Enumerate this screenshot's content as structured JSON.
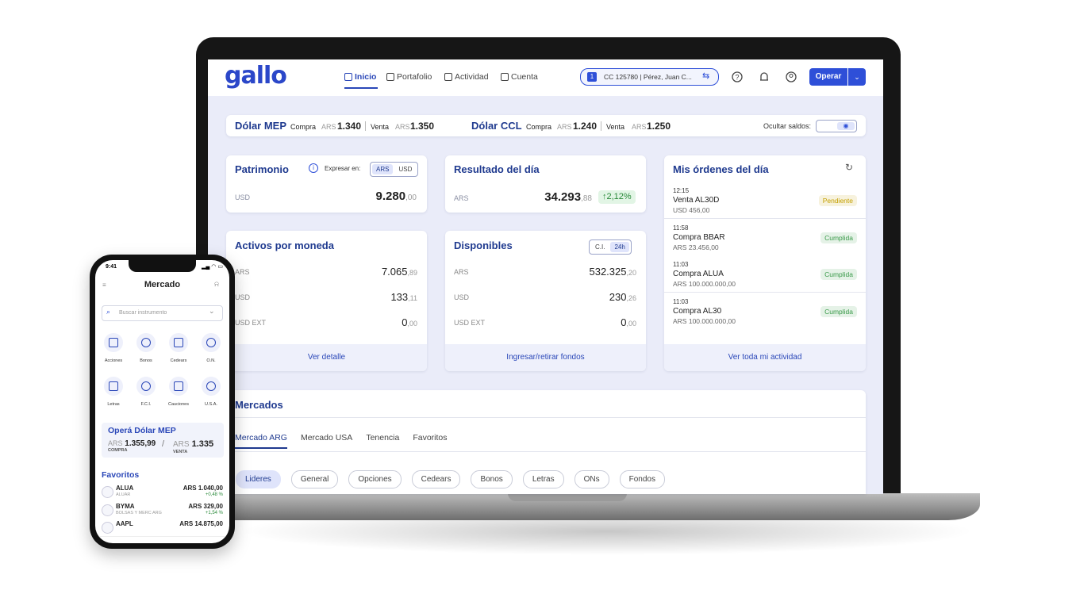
{
  "logo": "gallo",
  "nav": {
    "items": [
      "Inicio",
      "Portafolio",
      "Actividad",
      "Cuenta"
    ],
    "account_number": "1",
    "account": "CC 125780 | Pérez, Juan C...",
    "operate": "Operar"
  },
  "rates": {
    "mep": {
      "title": "Dólar MEP",
      "buy_label": "Compra",
      "buy_currency": "ARS",
      "buy": "1.340",
      "sell_label": "Venta",
      "sell_currency": "ARS",
      "sell": "1.350"
    },
    "ccl": {
      "title": "Dólar CCL",
      "buy_label": "Compra",
      "buy_currency": "ARS",
      "buy": "1.240",
      "sell_label": "Venta",
      "sell_currency": "ARS",
      "sell": "1.250"
    },
    "hide_label": "Ocultar saldos:"
  },
  "patrimonio": {
    "title": "Patrimonio",
    "express_label": "Expresar en:",
    "toggle": [
      "ARS",
      "USD"
    ],
    "currency": "USD",
    "value": "9.280",
    "decimals": ",00"
  },
  "resultado": {
    "title": "Resultado del día",
    "currency": "ARS",
    "value": "34.293",
    "decimals": ",88",
    "change": "2,12%"
  },
  "orders": {
    "title": "Mis órdenes del día",
    "items": [
      {
        "time": "12:15",
        "name": "Venta AL30D",
        "amount": "USD 456,00",
        "status": "Pendiente",
        "status_color": "#c4a000"
      },
      {
        "time": "11:58",
        "name": "Compra BBAR",
        "amount": "ARS 23.456,00",
        "status": "Cumplida",
        "status_color": "#3a9a4a"
      },
      {
        "time": "11:03",
        "name": "Compra ALUA",
        "amount": "ARS 100.000.000,00",
        "status": "Cumplida",
        "status_color": "#3a9a4a"
      },
      {
        "time": "11:03",
        "name": "Compra AL30",
        "amount": "ARS 100.000.000,00",
        "status": "Cumplida",
        "status_color": "#3a9a4a"
      }
    ],
    "footer": "Ver toda mi actividad"
  },
  "activos": {
    "title": "Activos por moneda",
    "rows": [
      {
        "label": "ARS",
        "value": "7.065",
        "decimals": ",89"
      },
      {
        "label": "USD",
        "value": "133",
        "decimals": ",11"
      },
      {
        "label": "USD EXT",
        "value": "0",
        "decimals": ",00"
      }
    ],
    "footer": "Ver detalle"
  },
  "disponibles": {
    "title": "Disponibles",
    "toggle": [
      "C.I.",
      "24h"
    ],
    "rows": [
      {
        "label": "ARS",
        "value": "532.325",
        "decimals": ",20"
      },
      {
        "label": "USD",
        "value": "230",
        "decimals": ",26"
      },
      {
        "label": "USD EXT",
        "value": "0",
        "decimals": ",00"
      }
    ],
    "footer": "Ingresar/retirar fondos"
  },
  "mercados": {
    "title": "Mercados",
    "tabs": [
      "Mercado ARG",
      "Mercado USA",
      "Tenencia",
      "Favoritos"
    ],
    "chips": [
      "Lideres",
      "General",
      "Opciones",
      "Cedears",
      "Bonos",
      "Letras",
      "ONs",
      "Fondos"
    ]
  },
  "phone": {
    "time": "9:41",
    "title": "Mercado",
    "search": "Buscar instrumento",
    "icons": [
      "Acciones",
      "Bonos",
      "Cedears",
      "O.N.",
      "Letras",
      "F.C.I.",
      "Cauciones",
      "U.S.A."
    ],
    "mep": {
      "title": "Operá Dólar MEP",
      "buy_currency": "ARS",
      "buy": "1.355,99",
      "buy_label": "COMPRA",
      "sell_currency": "ARS",
      "sell": "1.335",
      "sell_label": "VENTA"
    },
    "favorites_title": "Favoritos",
    "favorites": [
      {
        "ticker": "ALUA",
        "name": "ALUAR",
        "price": "ARS 1.040,00",
        "change": "+0,48 %"
      },
      {
        "ticker": "BYMA",
        "name": "BOLSAS Y MERC ARG",
        "price": "ARS 329,00",
        "change": "+1,54 %"
      },
      {
        "ticker": "AAPL",
        "price": "ARS 14.875,00"
      }
    ]
  }
}
